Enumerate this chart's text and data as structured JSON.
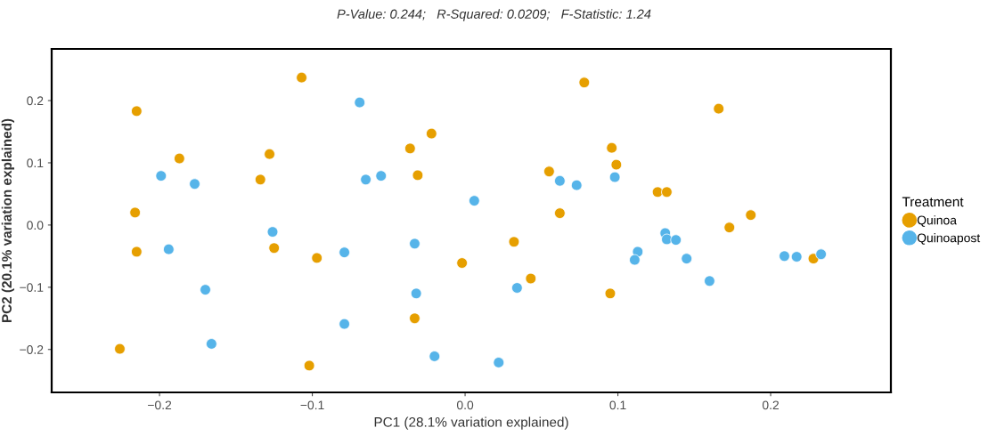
{
  "chart_data": {
    "type": "scatter",
    "title": "P-Value: 0.244;   R-Squared: 0.0209;   F-Statistic: 1.24",
    "xlabel": "PC1 (28.1% variation explained)",
    "ylabel": "PC2 (20.1% variation explained)",
    "legend_title": "Treatment",
    "legend": "right",
    "grid": false,
    "marker": "circle",
    "xlim": [
      -0.2706,
      0.2787
    ],
    "ylim": [
      -0.269,
      0.283
    ],
    "xticks": [
      {
        "value": -0.2,
        "label": "−0.2"
      },
      {
        "value": -0.1,
        "label": "−0.1"
      },
      {
        "value": 0,
        "label": "0.0"
      },
      {
        "value": 0.1,
        "label": "0.1"
      },
      {
        "value": 0.2,
        "label": "0.2"
      }
    ],
    "yticks": [
      {
        "value": -0.2,
        "label": "−0.2"
      },
      {
        "value": -0.1,
        "label": "−0.1"
      },
      {
        "value": 0,
        "label": "0.0"
      },
      {
        "value": 0.1,
        "label": "0.1"
      },
      {
        "value": 0.2,
        "label": "0.2"
      }
    ],
    "series": [
      {
        "name": "Quinoa",
        "color": "#e69f00",
        "x": [
          -0.107,
          -0.215,
          0.078,
          0.166,
          -0.187,
          -0.128,
          -0.134,
          -0.022,
          -0.036,
          0.096,
          0.099,
          0.055,
          -0.031,
          0.126,
          0.132,
          -0.216,
          0.062,
          0.173,
          0.187,
          -0.215,
          -0.125,
          -0.097,
          0.032,
          -0.002,
          0.043,
          0.095,
          -0.033,
          -0.226,
          -0.102,
          0.228
        ],
        "values": [
          0.237,
          0.183,
          0.229,
          0.187,
          0.107,
          0.114,
          0.073,
          0.147,
          0.123,
          0.124,
          0.097,
          0.086,
          0.08,
          0.053,
          0.053,
          0.02,
          0.019,
          -0.004,
          0.016,
          -0.043,
          -0.037,
          -0.053,
          -0.027,
          -0.061,
          -0.086,
          -0.11,
          -0.15,
          -0.199,
          -0.226,
          -0.054
        ]
      },
      {
        "name": "Quinoapost",
        "color": "#56b4e9",
        "x": [
          -0.069,
          -0.199,
          -0.177,
          -0.065,
          -0.055,
          0.062,
          0.073,
          0.098,
          0.006,
          -0.126,
          -0.194,
          -0.033,
          -0.079,
          -0.17,
          -0.032,
          0.034,
          -0.079,
          -0.166,
          -0.02,
          0.022,
          0.131,
          0.132,
          0.138,
          0.113,
          0.111,
          0.145,
          0.16,
          0.209,
          0.217,
          0.233
        ],
        "values": [
          0.197,
          0.079,
          0.066,
          0.073,
          0.079,
          0.071,
          0.064,
          0.077,
          0.039,
          -0.011,
          -0.039,
          -0.03,
          -0.044,
          -0.104,
          -0.11,
          -0.101,
          -0.159,
          -0.191,
          -0.211,
          -0.221,
          -0.013,
          -0.023,
          -0.024,
          -0.043,
          -0.056,
          -0.054,
          -0.09,
          -0.05,
          -0.051,
          -0.047
        ]
      }
    ]
  }
}
